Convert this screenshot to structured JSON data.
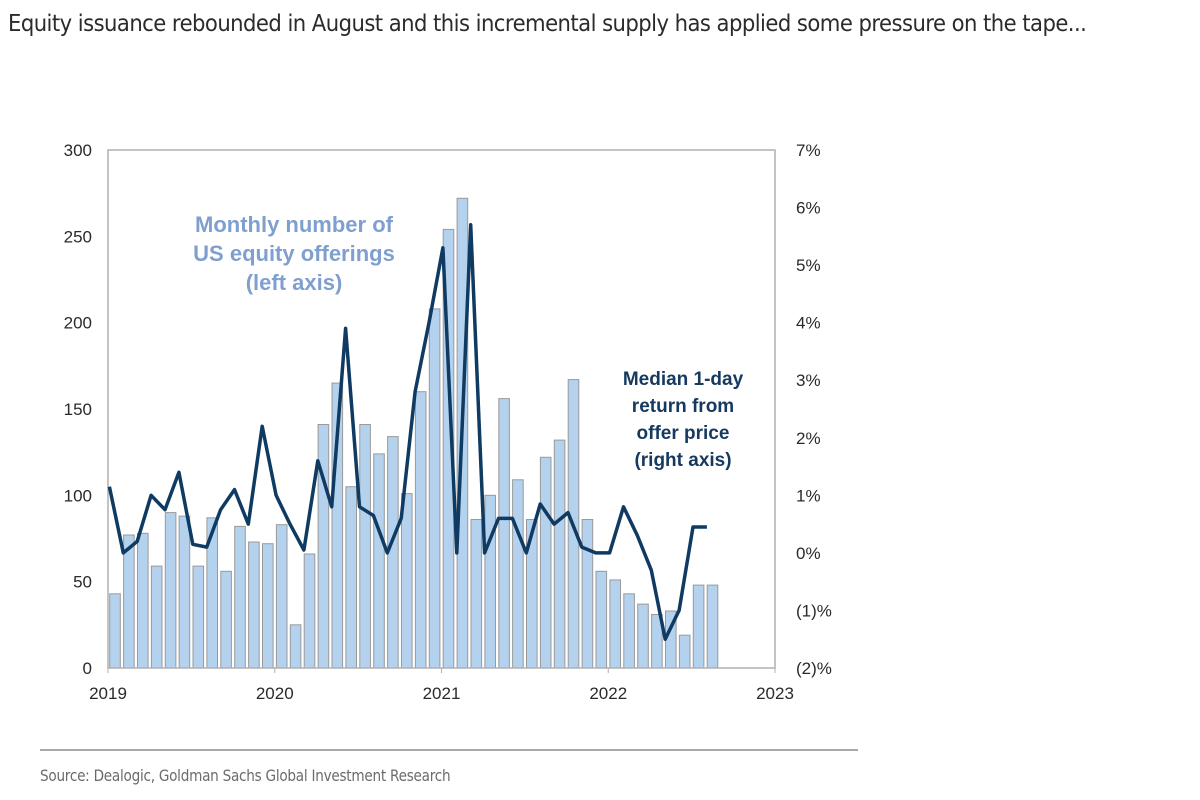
{
  "headline": "Equity issuance rebounded in August and this incremental supply has applied some pressure on the tape...",
  "source": "Source: Dealogic, Goldman Sachs Global Investment Research",
  "colors": {
    "bar_fill": "#b4d2ee",
    "bar_stroke": "#9a9a9a",
    "line": "#0f3a62",
    "axis": "#b0b0b0",
    "left_annotation": "#7f9fcf",
    "right_annotation": "#15395f"
  },
  "chart_data": {
    "type": "bar+line",
    "title": "",
    "x_ticks": [
      "2019",
      "2020",
      "2021",
      "2022",
      "2023"
    ],
    "x_range": [
      "2019-01",
      "2023-01"
    ],
    "left_axis": {
      "label": "",
      "ticks": [
        "0",
        "50",
        "100",
        "150",
        "200",
        "250",
        "300"
      ],
      "range": [
        0,
        300
      ]
    },
    "right_axis": {
      "label": "",
      "ticks": [
        "(2)%",
        "(1)%",
        "0%",
        "1%",
        "2%",
        "3%",
        "4%",
        "5%",
        "6%",
        "7%"
      ],
      "range": [
        -2,
        7
      ]
    },
    "months": [
      "2019-01",
      "2019-02",
      "2019-03",
      "2019-04",
      "2019-05",
      "2019-06",
      "2019-07",
      "2019-08",
      "2019-09",
      "2019-10",
      "2019-11",
      "2019-12",
      "2020-01",
      "2020-02",
      "2020-03",
      "2020-04",
      "2020-05",
      "2020-06",
      "2020-07",
      "2020-08",
      "2020-09",
      "2020-10",
      "2020-11",
      "2020-12",
      "2021-01",
      "2021-02",
      "2021-03",
      "2021-04",
      "2021-05",
      "2021-06",
      "2021-07",
      "2021-08",
      "2021-09",
      "2021-10",
      "2021-11",
      "2021-12",
      "2022-01",
      "2022-02",
      "2022-03",
      "2022-04",
      "2022-05",
      "2022-06",
      "2022-07",
      "2022-08"
    ],
    "series": [
      {
        "name": "Monthly number of US equity offerings (left axis)",
        "type": "bar",
        "axis": "left",
        "values": [
          43,
          77,
          78,
          59,
          90,
          88,
          59,
          87,
          56,
          82,
          73,
          72,
          83,
          25,
          66,
          141,
          165,
          105,
          141,
          124,
          134,
          101,
          160,
          208,
          254,
          272,
          86,
          100,
          156,
          109,
          86,
          122,
          132,
          167,
          86,
          56,
          51,
          43,
          37,
          31,
          33,
          19,
          48,
          48
        ]
      },
      {
        "name": "Median 1-day return from offer price (right axis)",
        "type": "line",
        "axis": "right",
        "values": [
          1.15,
          0.0,
          0.2,
          1.0,
          0.75,
          1.4,
          0.15,
          0.1,
          0.75,
          1.1,
          0.5,
          2.2,
          1.0,
          0.5,
          0.05,
          1.6,
          0.8,
          3.9,
          0.8,
          0.65,
          0.0,
          0.6,
          2.8,
          4.0,
          5.3,
          0.0,
          5.7,
          0.0,
          0.6,
          0.6,
          0.0,
          0.85,
          0.5,
          0.7,
          0.1,
          0.0,
          0.0,
          0.8,
          0.3,
          -0.3,
          -1.5,
          -1.0,
          0.45,
          0.45
        ]
      }
    ],
    "annotations": [
      {
        "text": [
          "Monthly number of",
          "US equity offerings",
          "(left axis)"
        ],
        "series": "bars"
      },
      {
        "text": [
          "Median 1-day",
          "return from",
          "offer price",
          "(right axis)"
        ],
        "series": "line"
      }
    ],
    "grid": false,
    "legend": "none"
  }
}
